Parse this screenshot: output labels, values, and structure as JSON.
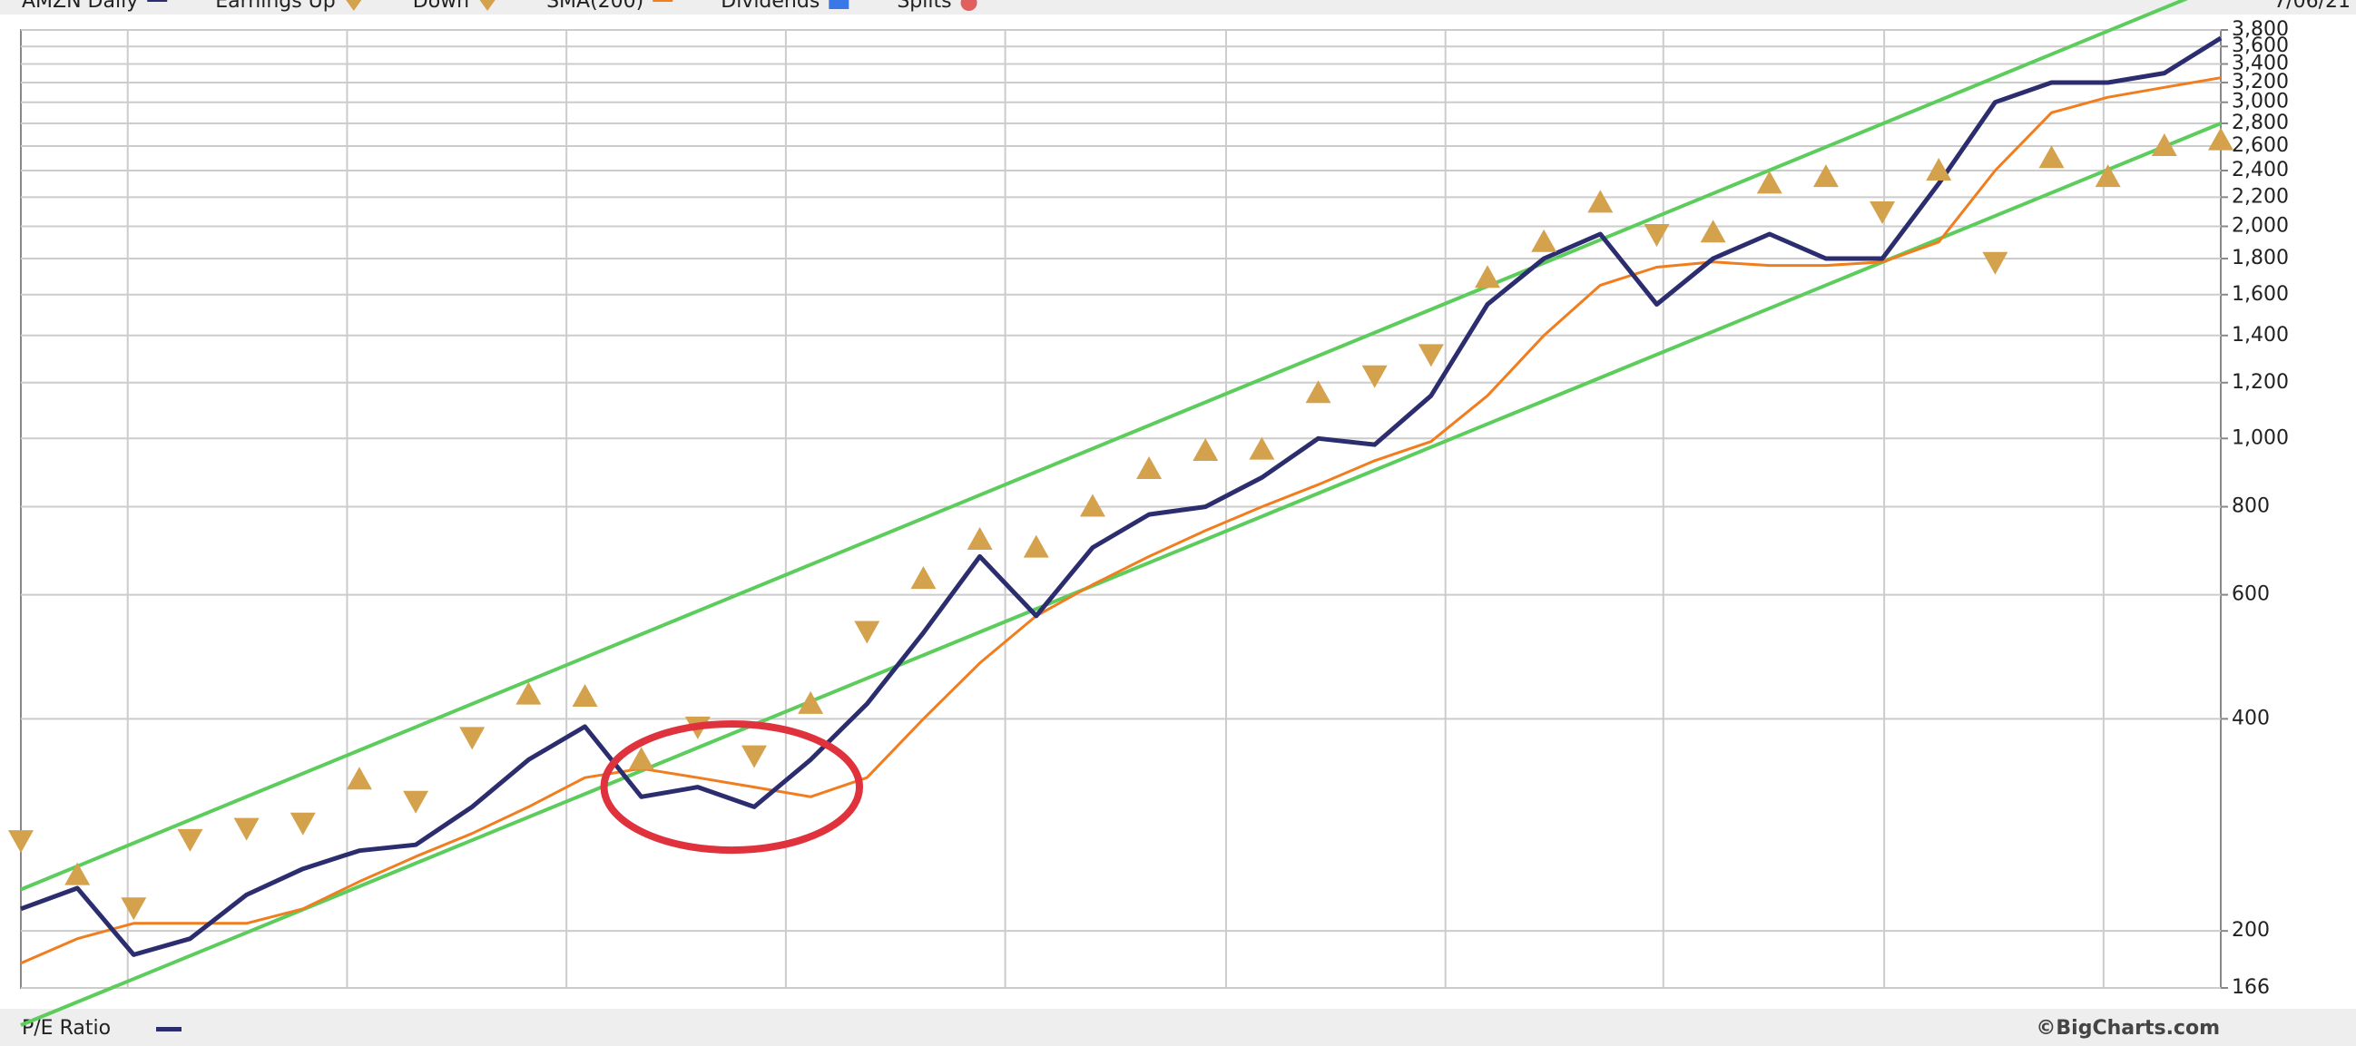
{
  "chart_data": {
    "type": "line",
    "log_scale": true,
    "grid": true,
    "title": "AMZN Daily",
    "date_label": "7/06/21",
    "footer_label": "P/E Ratio",
    "credit": "©BigCharts.com",
    "legend_extra": [
      {
        "name": "Dividends",
        "color": "#3b78e7"
      },
      {
        "name": "Splits",
        "color": "#e06060"
      }
    ],
    "ylim": [
      166,
      3800
    ],
    "yticks": [
      166,
      200,
      400,
      600,
      800,
      {
        "value": 1000,
        "label": "1,000"
      },
      {
        "value": 1200,
        "label": "1,200"
      },
      {
        "value": 1400,
        "label": "1,400"
      },
      {
        "value": 1600,
        "label": "1,600"
      },
      {
        "value": 1800,
        "label": "1,800"
      },
      {
        "value": 2000,
        "label": "2,000"
      },
      {
        "value": 2200,
        "label": "2,200"
      },
      {
        "value": 2400,
        "label": "2,400"
      },
      {
        "value": 2600,
        "label": "2,600"
      },
      {
        "value": 2800,
        "label": "2,800"
      },
      {
        "value": 3000,
        "label": "3,000"
      },
      {
        "value": 3200,
        "label": "3,200"
      },
      {
        "value": 3400,
        "label": "3,400"
      },
      {
        "value": 3600,
        "label": "3,600"
      },
      {
        "value": 3800,
        "label": "3,800"
      }
    ],
    "series": [
      {
        "name": "AMZN Daily",
        "color": "#2b2d6e",
        "kind": "line",
        "values": [
          215,
          230,
          185,
          195,
          225,
          245,
          260,
          265,
          300,
          350,
          390,
          310,
          320,
          300,
          350,
          420,
          530,
          680,
          560,
          700,
          780,
          800,
          880,
          1000,
          980,
          1150,
          1550,
          1800,
          1950,
          1550,
          1800,
          1950,
          1800,
          1800,
          2300,
          3000,
          3200,
          3200,
          3300,
          3700
        ]
      },
      {
        "name": "Earnings Up",
        "color": "#d4a24c",
        "kind": "up",
        "values": [
          null,
          240,
          null,
          null,
          null,
          null,
          328,
          null,
          null,
          433,
          430,
          350,
          null,
          null,
          420,
          null,
          632,
          718,
          700,
          800,
          905,
          960,
          964,
          1160,
          null,
          null,
          1690,
          1900,
          2161,
          null,
          1960,
          2300,
          2350,
          null,
          2400,
          null,
          2500,
          2350,
          2600,
          2650
        ]
      },
      {
        "name": "Down",
        "color": "#d4a24c",
        "kind": "down",
        "values": [
          269,
          null,
          216,
          270,
          280,
          285,
          null,
          306,
          377,
          null,
          null,
          null,
          390,
          355,
          null,
          533,
          null,
          null,
          null,
          null,
          null,
          null,
          null,
          null,
          1229,
          1317,
          null,
          null,
          null,
          1950,
          null,
          null,
          null,
          2100,
          null,
          1780,
          null,
          null,
          null,
          null
        ]
      },
      {
        "name": "SMA(200)",
        "color": "#f07d1e",
        "kind": "line",
        "values": [
          180,
          195,
          205,
          205,
          205,
          215,
          235,
          255,
          275,
          300,
          330,
          340,
          330,
          320,
          310,
          330,
          400,
          480,
          560,
          620,
          680,
          740,
          800,
          860,
          930,
          990,
          1150,
          1400,
          1650,
          1750,
          1780,
          1760,
          1760,
          1780,
          1900,
          2400,
          2900,
          3050,
          3150,
          3250
        ]
      }
    ],
    "trend_lines": [
      {
        "color": "#5ccc5c",
        "values": [
          229,
          4407
        ]
      },
      {
        "color": "#5ccc5c",
        "values": [
          147,
          2800
        ]
      }
    ]
  }
}
